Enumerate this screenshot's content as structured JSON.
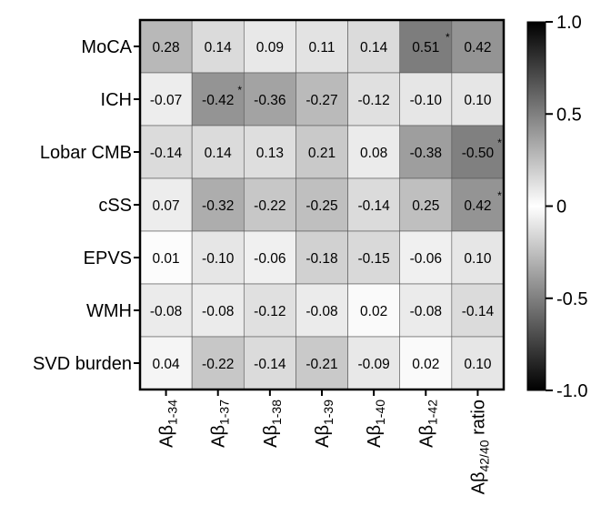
{
  "chart_data": {
    "type": "heatmap",
    "rows": [
      "MoCA",
      "ICH",
      "Lobar CMB",
      "cSS",
      "EPVS",
      "WMH",
      "SVD burden"
    ],
    "columns": [
      {
        "main": "Aβ",
        "sub": "1-34",
        "suffix": ""
      },
      {
        "main": "Aβ",
        "sub": "1-37",
        "suffix": ""
      },
      {
        "main": "Aβ",
        "sub": "1-38",
        "suffix": ""
      },
      {
        "main": "Aβ",
        "sub": "1-39",
        "suffix": ""
      },
      {
        "main": "Aβ",
        "sub": "1-40",
        "suffix": ""
      },
      {
        "main": "Aβ",
        "sub": "1-42",
        "suffix": ""
      },
      {
        "main": "Aβ",
        "sub": "42/40",
        "suffix": " ratio"
      }
    ],
    "values": [
      [
        "0.28",
        "0.14",
        "0.09",
        "0.11",
        "0.14",
        "0.51",
        "0.42"
      ],
      [
        "-0.07",
        "-0.42",
        "-0.36",
        "-0.27",
        "-0.12",
        "-0.10",
        "0.10"
      ],
      [
        "-0.14",
        "0.14",
        "0.13",
        "0.21",
        "0.08",
        "-0.38",
        "-0.50"
      ],
      [
        "0.07",
        "-0.32",
        "-0.22",
        "-0.25",
        "-0.14",
        "0.25",
        "0.42"
      ],
      [
        "0.01",
        "-0.10",
        "-0.06",
        "-0.18",
        "-0.15",
        "-0.06",
        "0.10"
      ],
      [
        "-0.08",
        "-0.08",
        "-0.12",
        "-0.08",
        "0.02",
        "-0.08",
        "-0.14"
      ],
      [
        "0.04",
        "-0.22",
        "-0.14",
        "-0.21",
        "-0.09",
        "0.02",
        "0.10"
      ]
    ],
    "significance_marker": "*",
    "significant": [
      [
        0,
        5
      ],
      [
        1,
        1
      ],
      [
        2,
        6
      ],
      [
        3,
        6
      ]
    ],
    "colorbar": {
      "min": -1.0,
      "max": 1.0,
      "ticks": [
        "1.0",
        "0.5",
        "0",
        "-0.5",
        "-1.0"
      ],
      "tick_values": [
        1.0,
        0.5,
        0,
        -0.5,
        -1.0
      ],
      "colors": {
        "negative_end": "#000000",
        "zero": "#ffffff",
        "positive_end": "#000000"
      }
    }
  }
}
